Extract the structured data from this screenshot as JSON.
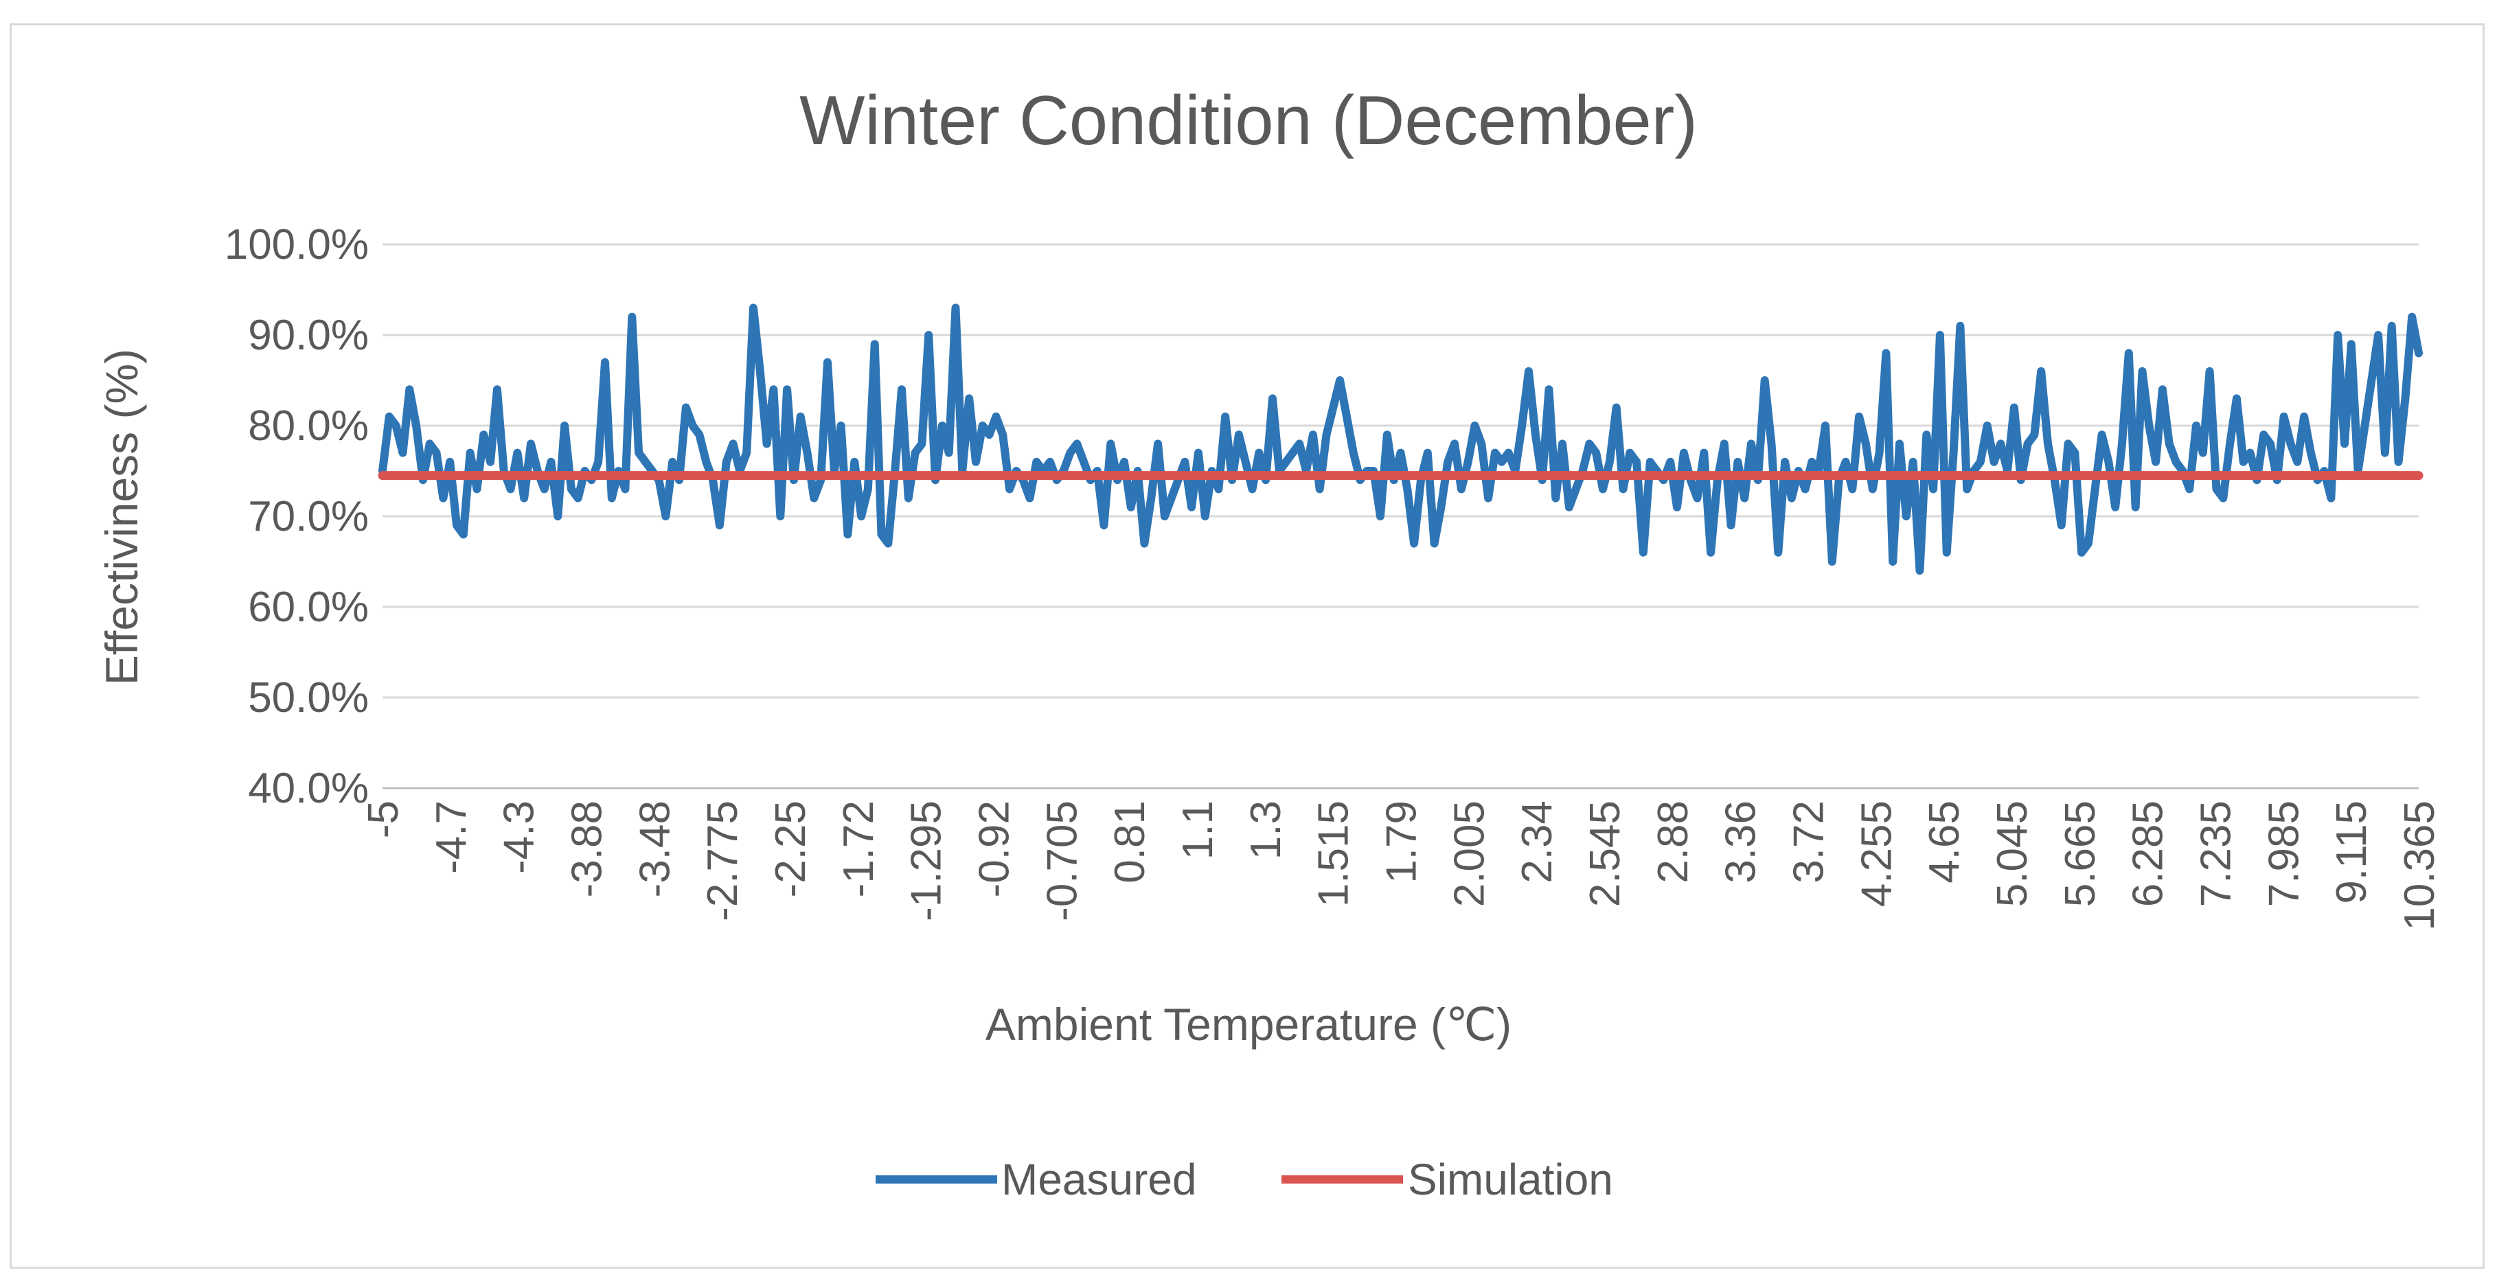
{
  "chart_data": {
    "type": "line",
    "title": "Winter Condition (December)",
    "xlabel": "Ambient Temperature (℃)",
    "ylabel": "Effectiviness (%)",
    "ylim": [
      0.4,
      1.0
    ],
    "yticks": [
      "100.0%",
      "90.0%",
      "80.0%",
      "70.0%",
      "60.0%",
      "50.0%",
      "40.0%"
    ],
    "ytick_values": [
      1.0,
      0.9,
      0.8,
      0.7,
      0.6,
      0.5,
      0.4
    ],
    "grid": true,
    "legend_position": "bottom",
    "x_tick_labels": [
      "-5",
      "-4.7",
      "-4.3",
      "-3.88",
      "-3.48",
      "-2.775",
      "-2.25",
      "-1.72",
      "-1.295",
      "-0.92",
      "-0.705",
      "0.81",
      "1.1",
      "1.3",
      "1.515",
      "1.79",
      "2.005",
      "2.34",
      "2.545",
      "2.88",
      "3.36",
      "3.72",
      "4.255",
      "4.65",
      "5.045",
      "5.665",
      "6.285",
      "7.235",
      "7.985",
      "9.115",
      "10.365"
    ],
    "series": [
      {
        "name": "Measured",
        "color": "#2e75b6",
        "values": [
          0.75,
          0.81,
          0.8,
          0.77,
          0.84,
          0.8,
          0.74,
          0.78,
          0.77,
          0.72,
          0.76,
          0.69,
          0.68,
          0.77,
          0.73,
          0.79,
          0.76,
          0.84,
          0.75,
          0.73,
          0.77,
          0.72,
          0.78,
          0.75,
          0.73,
          0.76,
          0.7,
          0.8,
          0.73,
          0.72,
          0.75,
          0.74,
          0.76,
          0.87,
          0.72,
          0.75,
          0.73,
          0.92,
          0.77,
          0.76,
          0.75,
          0.74,
          0.7,
          0.76,
          0.74,
          0.82,
          0.8,
          0.79,
          0.76,
          0.74,
          0.69,
          0.76,
          0.78,
          0.75,
          0.77,
          0.93,
          0.86,
          0.78,
          0.84,
          0.7,
          0.84,
          0.74,
          0.81,
          0.77,
          0.72,
          0.74,
          0.87,
          0.75,
          0.8,
          0.68,
          0.76,
          0.7,
          0.73,
          0.89,
          0.68,
          0.67,
          0.75,
          0.84,
          0.72,
          0.77,
          0.78,
          0.9,
          0.74,
          0.8,
          0.77,
          0.93,
          0.75,
          0.83,
          0.76,
          0.8,
          0.79,
          0.81,
          0.79,
          0.73,
          0.75,
          0.74,
          0.72,
          0.76,
          0.75,
          0.76,
          0.74,
          0.75,
          0.77,
          0.78,
          0.76,
          0.74,
          0.75,
          0.69,
          0.78,
          0.74,
          0.76,
          0.71,
          0.75,
          0.67,
          0.72,
          0.78,
          0.7,
          0.72,
          0.74,
          0.76,
          0.71,
          0.77,
          0.7,
          0.75,
          0.73,
          0.81,
          0.74,
          0.79,
          0.76,
          0.73,
          0.77,
          0.74,
          0.83,
          0.75,
          0.76,
          0.77,
          0.78,
          0.75,
          0.79,
          0.73,
          0.79,
          0.82,
          0.85,
          0.81,
          0.77,
          0.74,
          0.75,
          0.75,
          0.7,
          0.79,
          0.74,
          0.77,
          0.73,
          0.67,
          0.74,
          0.77,
          0.67,
          0.71,
          0.76,
          0.78,
          0.73,
          0.76,
          0.8,
          0.78,
          0.72,
          0.77,
          0.76,
          0.77,
          0.75,
          0.8,
          0.86,
          0.79,
          0.74,
          0.84,
          0.72,
          0.78,
          0.71,
          0.73,
          0.75,
          0.78,
          0.77,
          0.73,
          0.76,
          0.82,
          0.73,
          0.77,
          0.76,
          0.66,
          0.76,
          0.75,
          0.74,
          0.76,
          0.71,
          0.77,
          0.74,
          0.72,
          0.77,
          0.66,
          0.74,
          0.78,
          0.69,
          0.76,
          0.72,
          0.78,
          0.74,
          0.85,
          0.78,
          0.66,
          0.76,
          0.72,
          0.75,
          0.73,
          0.76,
          0.75,
          0.8,
          0.65,
          0.74,
          0.76,
          0.73,
          0.81,
          0.78,
          0.73,
          0.77,
          0.88,
          0.65,
          0.78,
          0.7,
          0.76,
          0.64,
          0.79,
          0.73,
          0.9,
          0.66,
          0.77,
          0.91,
          0.73,
          0.75,
          0.76,
          0.8,
          0.76,
          0.78,
          0.75,
          0.82,
          0.74,
          0.78,
          0.79,
          0.86,
          0.78,
          0.74,
          0.69,
          0.78,
          0.77,
          0.66,
          0.67,
          0.73,
          0.79,
          0.76,
          0.71,
          0.78,
          0.88,
          0.71,
          0.86,
          0.8,
          0.76,
          0.84,
          0.78,
          0.76,
          0.75,
          0.73,
          0.8,
          0.77,
          0.86,
          0.73,
          0.72,
          0.78,
          0.83,
          0.76,
          0.77,
          0.74,
          0.79,
          0.78,
          0.74,
          0.81,
          0.78,
          0.76,
          0.81,
          0.77,
          0.74,
          0.75,
          0.72,
          0.9,
          0.78,
          0.89,
          0.75,
          0.8,
          0.85,
          0.9,
          0.77,
          0.91,
          0.76,
          0.83,
          0.92,
          0.88
        ]
      },
      {
        "name": "Simulation",
        "color": "#d9534f",
        "values": [
          0.745,
          0.745
        ]
      }
    ]
  }
}
